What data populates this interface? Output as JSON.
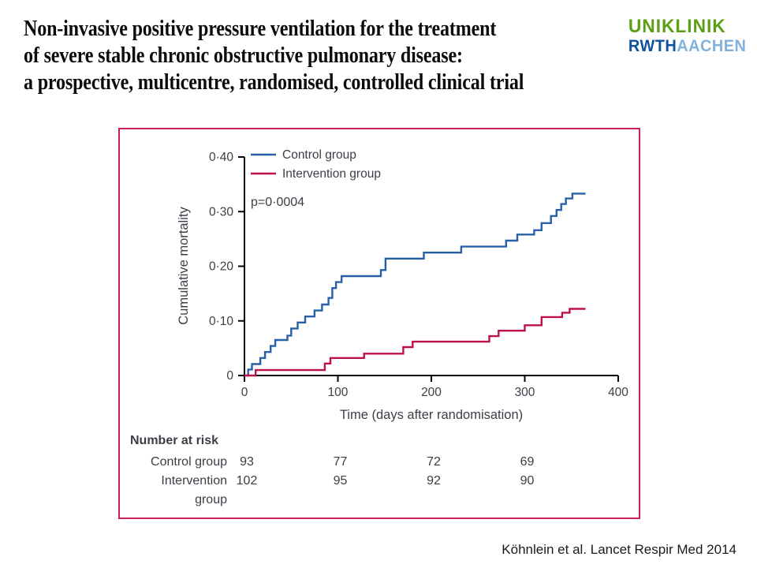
{
  "slide": {
    "title_lines": [
      "Non-invasive positive pressure ventilation for the treatment",
      "of severe stable chronic obstructive pulmonary disease:",
      "a prospective, multicentre, randomised, controlled clinical trial"
    ],
    "citation": "Köhnlein et al. Lancet Respir Med 2014"
  },
  "logo": {
    "line1": "UNIKLINIK",
    "rwth": "RWTH",
    "aachen": "AACHEN",
    "colors": {
      "green": "#5C9F17",
      "dark_blue": "#0F519C",
      "light_blue": "#82B1DB"
    }
  },
  "chart_data": {
    "type": "line",
    "subtype": "kaplan-meier-step",
    "xlabel": "Time (days after randomisation)",
    "ylabel": "Cumulative mortality",
    "annotation": "p=0·0004",
    "legend_position": "top-left-inside",
    "grid": false,
    "xlim": [
      0,
      400
    ],
    "ylim": [
      0,
      0.4
    ],
    "xticks": [
      0,
      100,
      200,
      300,
      400
    ],
    "xtick_labels": [
      "0",
      "100",
      "200",
      "300",
      "400"
    ],
    "ytick_values": [
      0,
      0.1,
      0.2,
      0.3,
      0.4
    ],
    "ytick_labels": [
      "0",
      "0·10",
      "0·20",
      "0·30",
      "0·40"
    ],
    "axis_color": "#000000",
    "frame_color": "#C92153",
    "series": [
      {
        "name": "Control group",
        "color": "#2760A6",
        "step_points": [
          [
            0,
            0
          ],
          [
            4,
            0.011
          ],
          [
            8,
            0.021
          ],
          [
            17,
            0.032
          ],
          [
            22,
            0.043
          ],
          [
            28,
            0.054
          ],
          [
            33,
            0.065
          ],
          [
            46,
            0.073
          ],
          [
            50,
            0.086
          ],
          [
            57,
            0.097
          ],
          [
            65,
            0.108
          ],
          [
            75,
            0.119
          ],
          [
            83,
            0.13
          ],
          [
            90,
            0.142
          ],
          [
            94,
            0.16
          ],
          [
            98,
            0.171
          ],
          [
            104,
            0.182
          ],
          [
            146,
            0.193
          ],
          [
            151,
            0.214
          ],
          [
            192,
            0.225
          ],
          [
            232,
            0.236
          ],
          [
            280,
            0.247
          ],
          [
            292,
            0.258
          ],
          [
            310,
            0.266
          ],
          [
            318,
            0.279
          ],
          [
            328,
            0.292
          ],
          [
            334,
            0.303
          ],
          [
            339,
            0.314
          ],
          [
            344,
            0.324
          ],
          [
            351,
            0.333
          ],
          [
            365,
            0.333
          ]
        ]
      },
      {
        "name": "Intervention group",
        "color": "#BE1246",
        "step_points": [
          [
            0,
            0
          ],
          [
            12,
            0.01
          ],
          [
            86,
            0.022
          ],
          [
            92,
            0.032
          ],
          [
            128,
            0.04
          ],
          [
            170,
            0.052
          ],
          [
            180,
            0.062
          ],
          [
            262,
            0.072
          ],
          [
            272,
            0.082
          ],
          [
            300,
            0.092
          ],
          [
            318,
            0.107
          ],
          [
            340,
            0.115
          ],
          [
            348,
            0.122
          ],
          [
            365,
            0.122
          ]
        ]
      }
    ],
    "number_at_risk": {
      "title": "Number at risk",
      "timepoints": [
        0,
        100,
        200,
        300
      ],
      "rows": [
        {
          "label_lines": [
            "Control group"
          ],
          "values": [
            "93",
            "77",
            "72",
            "69"
          ]
        },
        {
          "label_lines": [
            "Intervention",
            "group"
          ],
          "values": [
            "102",
            "95",
            "92",
            "90"
          ]
        }
      ]
    }
  }
}
